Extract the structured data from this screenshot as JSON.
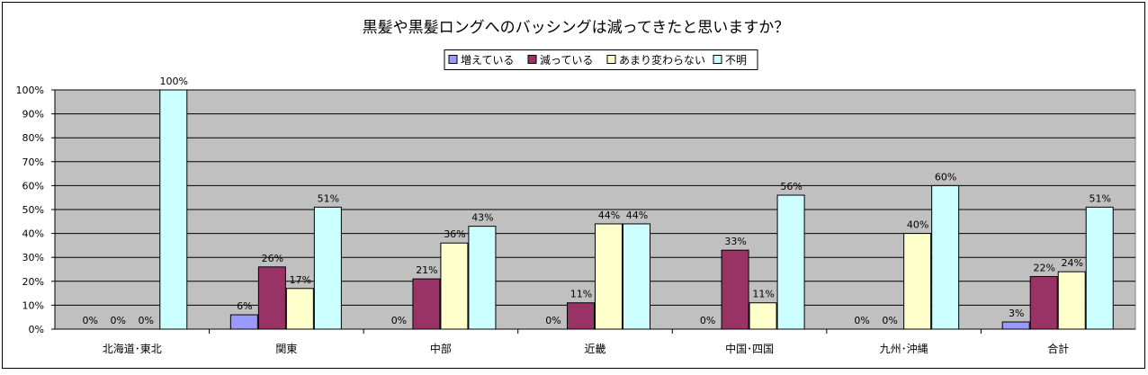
{
  "chart_data": {
    "type": "bar",
    "title": "黒髪や黒髪ロングへのバッシングは減ってきたと思いますか？",
    "xlabel": "",
    "ylabel": "",
    "ylim": [
      0,
      100
    ],
    "yticks": [
      "0%",
      "10%",
      "20%",
      "30%",
      "40%",
      "50%",
      "60%",
      "70%",
      "80%",
      "90%",
      "100%"
    ],
    "grid": true,
    "legend_position": "top-center",
    "categories": [
      "北海道･東北",
      "関東",
      "中部",
      "近畿",
      "中国･四国",
      "九州･沖縄",
      "合計"
    ],
    "series": [
      {
        "name": "増えている",
        "color": "#9999ff",
        "values": [
          0,
          6,
          0,
          0,
          0,
          0,
          3
        ]
      },
      {
        "name": "減っている",
        "color": "#993366",
        "values": [
          0,
          26,
          21,
          11,
          33,
          0,
          22
        ]
      },
      {
        "name": "あまり変わらない",
        "color": "#ffffcc",
        "values": [
          0,
          17,
          36,
          44,
          11,
          40,
          24
        ]
      },
      {
        "name": "不明",
        "color": "#ccffff",
        "values": [
          100,
          51,
          43,
          44,
          56,
          60,
          51
        ]
      }
    ],
    "plot_background": "#c0c0c0"
  }
}
